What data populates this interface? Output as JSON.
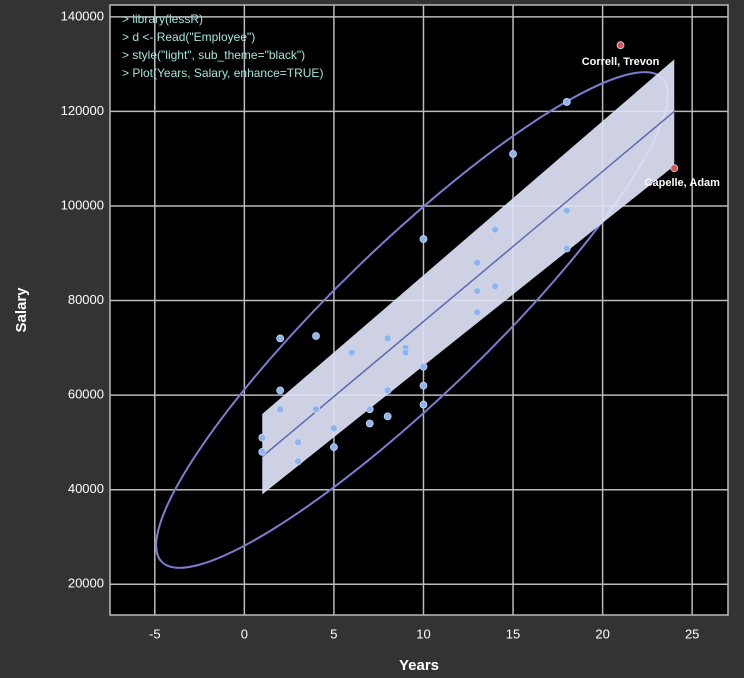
{
  "chart_data": {
    "type": "scatter",
    "xlabel": "Years",
    "ylabel": "Salary",
    "annotations": [
      "> library(lessR)",
      "> d <- Read(\"Employee\")",
      "> style(\"light\", sub_theme=\"black\")",
      "> Plot(Years, Salary, enhance=TRUE)"
    ],
    "xlim": [
      -7.5,
      27
    ],
    "ylim": [
      13500,
      142500
    ],
    "xticks": [
      -5,
      0,
      5,
      10,
      15,
      20,
      25
    ],
    "yticks": [
      20000,
      40000,
      60000,
      80000,
      100000,
      120000,
      140000
    ],
    "grid": true,
    "series": [
      {
        "color": "#8fb4ec",
        "x": [
          1,
          1,
          2,
          2,
          2,
          3,
          3,
          4,
          4,
          5,
          5,
          6,
          7,
          7,
          8,
          8,
          8,
          9,
          9,
          10,
          10,
          10,
          10,
          13,
          13,
          13,
          14,
          14,
          15,
          18,
          18,
          18
        ],
        "values": [
          51000,
          48000,
          72000,
          61000,
          57000,
          50000,
          46000,
          72500,
          57000,
          53000,
          49000,
          69000,
          57000,
          54000,
          72000,
          61000,
          55500,
          70000,
          69000,
          93000,
          66000,
          62000,
          58000,
          88000,
          82000,
          77500,
          95000,
          83000,
          111000,
          122000,
          99000,
          91000
        ]
      },
      {
        "color": "#e05050",
        "x": [
          21,
          24
        ],
        "values": [
          134000,
          108000
        ],
        "labels": [
          "Correll, Trevon",
          "Capelle, Adam"
        ]
      }
    ],
    "fit": {
      "color": "#dfe3f7",
      "x": [
        1,
        24
      ],
      "values": [
        47000,
        120000
      ],
      "lower": [
        39000,
        108500
      ],
      "upper": [
        56000,
        131000
      ]
    }
  }
}
